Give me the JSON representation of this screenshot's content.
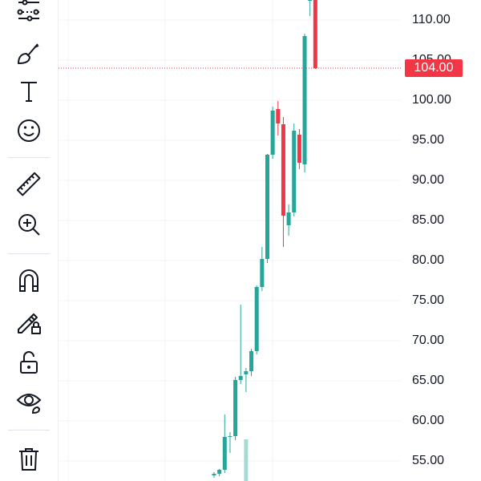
{
  "toolbar": {
    "tools": [
      {
        "name": "trend-line-tool-icon"
      },
      {
        "name": "brush-tool-icon"
      },
      {
        "name": "text-tool-icon",
        "glyph": "T"
      },
      {
        "name": "emoji-tool-icon"
      },
      {
        "name": "ruler-measure-icon"
      },
      {
        "name": "zoom-in-icon"
      },
      {
        "name": "magnet-icon"
      },
      {
        "name": "lock-drawings-icon"
      },
      {
        "name": "unlock-icon"
      },
      {
        "name": "eye-visibility-icon"
      },
      {
        "name": "trash-icon"
      }
    ]
  },
  "chart_data": {
    "type": "candlestick",
    "y_ticks": [
      "110.00",
      "105.00",
      "100.00",
      "95.00",
      "90.00",
      "85.00",
      "80.00",
      "75.00",
      "70.00",
      "65.00",
      "60.00",
      "55.00"
    ],
    "last_price_label": "104.00",
    "last_price": 104.0,
    "ylim": [
      52.5,
      112.5
    ],
    "colors": {
      "up": "#26a69a",
      "down": "#f23645",
      "volume_up": "#a8d9d3",
      "grid": "#f0f3fa",
      "price_line": "#f23645"
    },
    "candles": [
      {
        "o": 53.2,
        "h": 53.6,
        "l": 52.9,
        "c": 53.4
      },
      {
        "o": 53.4,
        "h": 54.0,
        "l": 53.1,
        "c": 53.9
      },
      {
        "o": 53.9,
        "h": 60.8,
        "l": 53.5,
        "c": 58.0
      },
      {
        "o": 58.0,
        "h": 58.6,
        "l": 56.0,
        "c": 58.1
      },
      {
        "o": 58.1,
        "h": 65.5,
        "l": 57.6,
        "c": 65.1
      },
      {
        "o": 65.1,
        "h": 74.5,
        "l": 64.6,
        "c": 65.6
      },
      {
        "o": 65.8,
        "h": 66.6,
        "l": 63.6,
        "c": 66.2
      },
      {
        "o": 66.2,
        "h": 69.0,
        "l": 65.6,
        "c": 68.7
      },
      {
        "o": 68.7,
        "h": 76.9,
        "l": 68.3,
        "c": 76.7
      },
      {
        "o": 76.7,
        "h": 81.7,
        "l": 76.2,
        "c": 80.2
      },
      {
        "o": 80.2,
        "h": 93.3,
        "l": 79.7,
        "c": 93.2
      },
      {
        "o": 93.2,
        "h": 99.2,
        "l": 92.7,
        "c": 98.7
      },
      {
        "o": 98.9,
        "h": 99.9,
        "l": 95.6,
        "c": 97.1
      },
      {
        "o": 97.0,
        "h": 97.9,
        "l": 81.7,
        "c": 85.6
      },
      {
        "o": 84.4,
        "h": 87.0,
        "l": 83.1,
        "c": 86.0
      },
      {
        "o": 86.0,
        "h": 97.1,
        "l": 85.5,
        "c": 96.2
      },
      {
        "o": 95.7,
        "h": 96.4,
        "l": 91.4,
        "c": 92.2
      },
      {
        "o": 92.0,
        "h": 108.3,
        "l": 91.0,
        "c": 108.0
      },
      {
        "o": 112.5,
        "h": 112.5,
        "l": 110.5,
        "c": 112.5
      },
      {
        "o": 112.5,
        "h": 112.5,
        "l": 103.9,
        "c": 104.0
      }
    ],
    "volume_visible": [
      0,
      0,
      0,
      0,
      0,
      0,
      1,
      0,
      0,
      0,
      0,
      0,
      0,
      0,
      0,
      0,
      0,
      0,
      0,
      0
    ]
  }
}
